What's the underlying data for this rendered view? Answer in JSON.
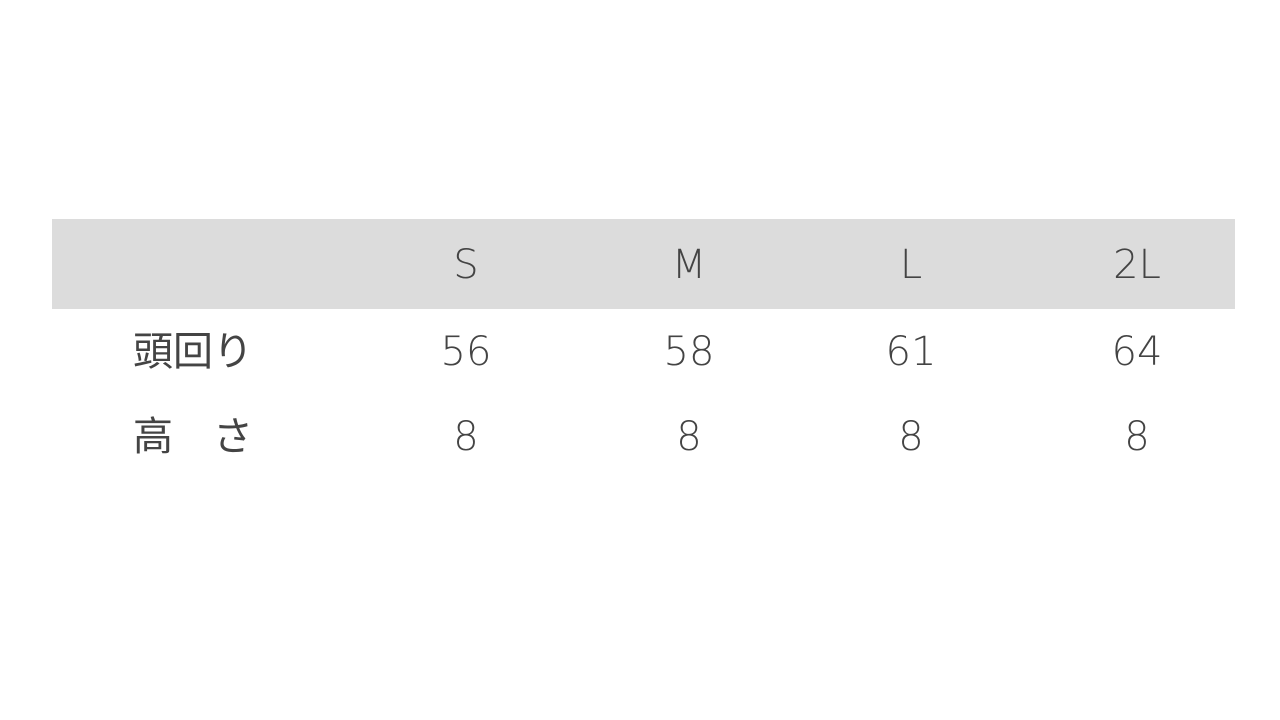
{
  "table": {
    "columns": [
      "S",
      "M",
      "L",
      "2L"
    ],
    "rows": [
      {
        "label": "頭回り",
        "values": [
          56,
          58,
          61,
          64
        ]
      },
      {
        "label": "高　さ",
        "values": [
          8,
          8,
          8,
          8
        ]
      }
    ]
  }
}
